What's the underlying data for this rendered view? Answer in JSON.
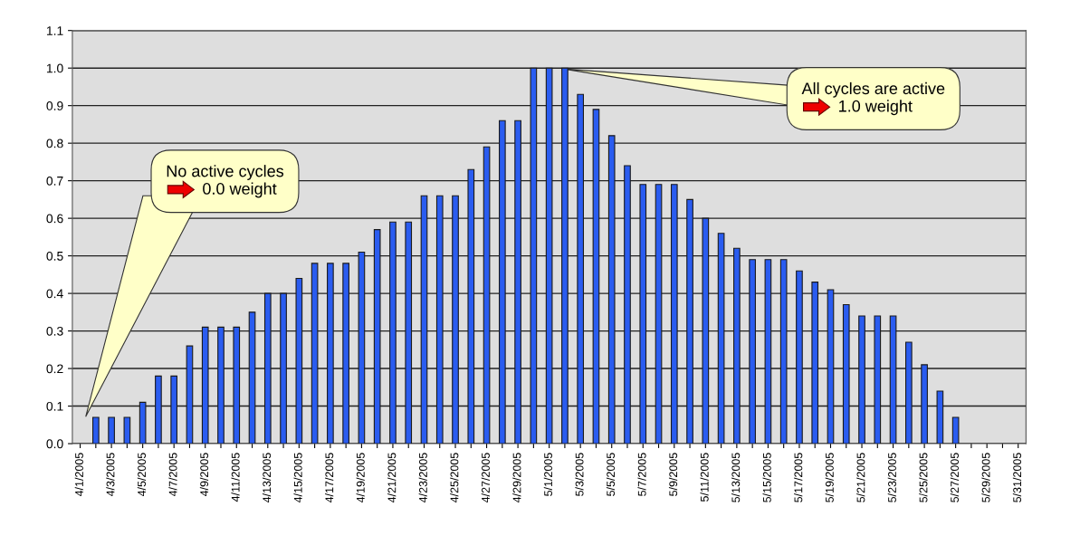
{
  "chart_data": {
    "type": "bar",
    "categories": [
      "4/1/2005",
      null,
      "4/3/2005",
      null,
      "4/5/2005",
      null,
      "4/7/2005",
      null,
      "4/9/2005",
      null,
      "4/11/2005",
      null,
      "4/13/2005",
      null,
      "4/15/2005",
      null,
      "4/17/2005",
      null,
      "4/19/2005",
      null,
      "4/21/2005",
      null,
      "4/23/2005",
      null,
      "4/25/2005",
      null,
      "4/27/2005",
      null,
      "4/29/2005",
      null,
      "5/1/2005",
      null,
      "5/3/2005",
      null,
      "5/5/2005",
      null,
      "5/7/2005",
      null,
      "5/9/2005",
      null,
      "5/11/2005",
      null,
      "5/13/2005",
      null,
      "5/15/2005",
      null,
      "5/17/2005",
      null,
      "5/19/2005",
      null,
      "5/21/2005",
      null,
      "5/23/2005",
      null,
      "5/25/2005",
      null,
      "5/27/2005",
      null,
      "5/29/2005",
      null,
      "5/31/2005"
    ],
    "values": [
      null,
      0.07,
      0.07,
      0.07,
      0.11,
      0.18,
      0.18,
      0.26,
      0.31,
      0.31,
      0.31,
      0.35,
      0.4,
      0.4,
      0.44,
      0.48,
      0.48,
      0.48,
      0.51,
      0.57,
      0.59,
      0.59,
      0.66,
      0.66,
      0.66,
      0.73,
      0.79,
      0.86,
      0.86,
      1.0,
      1.0,
      1.0,
      0.93,
      0.89,
      0.82,
      0.74,
      0.69,
      0.69,
      0.69,
      0.65,
      0.6,
      0.56,
      0.52,
      0.49,
      0.49,
      0.49,
      0.46,
      0.43,
      0.41,
      0.37,
      0.34,
      0.34,
      0.34,
      0.27,
      0.21,
      0.14,
      0.07,
      null,
      null,
      null,
      null
    ],
    "color": "#2a5cf0",
    "ylim": [
      0,
      1.1
    ],
    "yticks": [
      {
        "value": 0,
        "label": "0.0"
      },
      0.1,
      0.2,
      0.3,
      0.4,
      0.5,
      0.6,
      0.7,
      0.8,
      0.9,
      {
        "value": 1.0,
        "label": "1.0"
      },
      1.1
    ],
    "grid": "y",
    "annotations": [
      "No active cycles\n0.0 weight",
      "All cycles are active\n1.0 weight"
    ]
  }
}
